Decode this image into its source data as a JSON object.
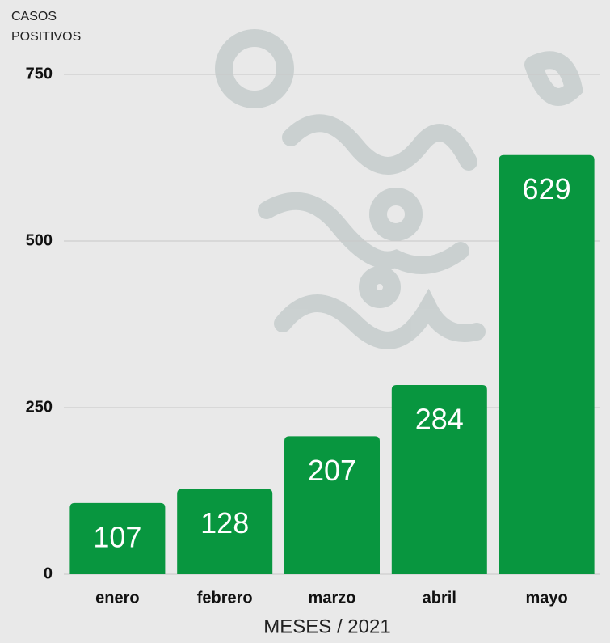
{
  "chart_data": {
    "type": "bar",
    "y_label": "CASOS POSITIVOS",
    "x_label": "MESES / 2021",
    "categories": [
      "enero",
      "febrero",
      "marzo",
      "abril",
      "mayo"
    ],
    "values": [
      107,
      128,
      207,
      284,
      629
    ],
    "color": "#08963f",
    "ylim": [
      0,
      750
    ],
    "yticks": [
      0,
      250,
      500,
      750
    ],
    "grid": true
  }
}
